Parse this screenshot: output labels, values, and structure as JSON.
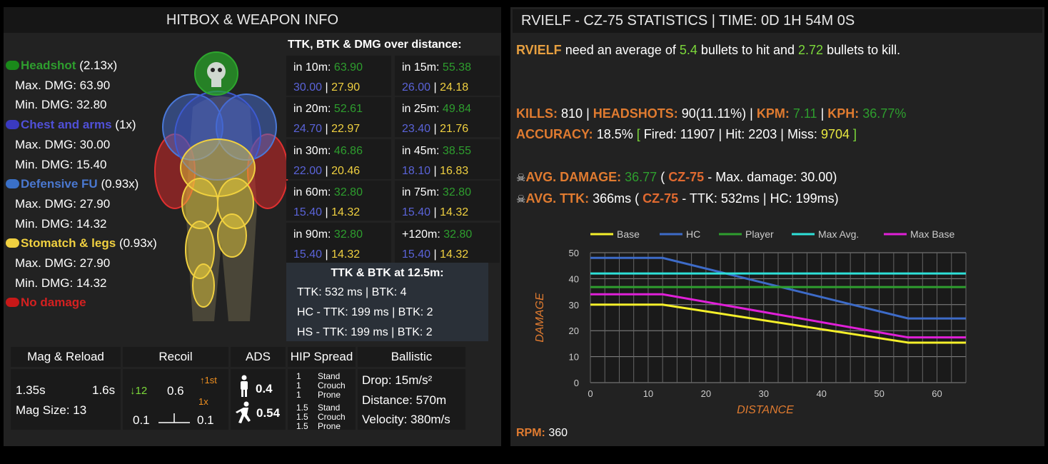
{
  "left": {
    "title": "HITBOX & WEAPON INFO",
    "zones": [
      {
        "name": "Headshot",
        "mult": "(2.13x)",
        "max": "Max. DMG: 63.90",
        "min": "Min. DMG: 32.80",
        "color": "#1a8a1a",
        "text_color": "#2ea62e"
      },
      {
        "name": "Chest and arms",
        "mult": "(1x)",
        "max": "Max. DMG: 30.00",
        "min": "Min. DMG: 15.40",
        "color": "#3a3ac0",
        "text_color": "#5050d8"
      },
      {
        "name": "Defensive FU",
        "mult": "(0.93x)",
        "max": "Max. DMG: 27.90",
        "min": "Min. DMG: 14.32",
        "color": "#3a70c8",
        "text_color": "#4a78d0"
      },
      {
        "name": "Stomatch & legs",
        "mult": "(0.93x)",
        "max": "Max. DMG: 27.90",
        "min": "Min. DMG: 14.32",
        "color": "#f0d040",
        "text_color": "#f0d040"
      }
    ],
    "no_damage": "No damage",
    "ttk_title": "TTK, BTK & DMG over distance:",
    "distances": [
      {
        "label": "in 10m:",
        "dmg": "63.90",
        "a": "30.00",
        "b": "27.90"
      },
      {
        "label": "in 15m:",
        "dmg": "55.38",
        "a": "26.00",
        "b": "24.18"
      },
      {
        "label": "in 20m:",
        "dmg": "52.61",
        "a": "24.70",
        "b": "22.97"
      },
      {
        "label": "in 25m:",
        "dmg": "49.84",
        "a": "23.40",
        "b": "21.76"
      },
      {
        "label": "in 30m:",
        "dmg": "46.86",
        "a": "22.00",
        "b": "20.46"
      },
      {
        "label": "in 45m:",
        "dmg": "38.55",
        "a": "18.10",
        "b": "16.83"
      },
      {
        "label": "in 60m:",
        "dmg": "32.80",
        "a": "15.40",
        "b": "14.32"
      },
      {
        "label": "in 75m:",
        "dmg": "32.80",
        "a": "15.40",
        "b": "14.32"
      },
      {
        "label": "in 90m:",
        "dmg": "32.80",
        "a": "15.40",
        "b": "14.32"
      },
      {
        "label": "+120m:",
        "dmg": "32.80",
        "a": "15.40",
        "b": "14.32"
      }
    ],
    "ttk125": {
      "title": "TTK & BTK at 12.5m:",
      "line1": "TTK: 532 ms | BTK: 4",
      "line2": "HC - TTK: 199 ms | BTK: 2",
      "line3": "HS - TTK: 199 ms | BTK: 2"
    },
    "stats": {
      "headers": [
        "Mag & Reload",
        "Recoil",
        "ADS",
        "HIP Spread",
        "Ballistic"
      ],
      "reload1": "1.35s",
      "reload2": "1.6s",
      "mag_size": "Mag Size: 13",
      "recoil_down": "↓12",
      "recoil_mid": "0.6",
      "recoil_first": "↑1st",
      "recoil_mult": "1x",
      "recoil_left": "0.1",
      "recoil_right": "0.1",
      "ads_stand": "0.4",
      "ads_move": "0.54",
      "hip": [
        {
          "v": "1",
          "s": "Stand"
        },
        {
          "v": "1",
          "s": "Crouch"
        },
        {
          "v": "1",
          "s": "Prone"
        },
        {
          "v": "1.5",
          "s": "Stand"
        },
        {
          "v": "1.5",
          "s": "Crouch"
        },
        {
          "v": "1.5",
          "s": "Prone"
        }
      ],
      "drop": "Drop: 15m/s²",
      "distance": "Distance: 570m",
      "velocity": "Velocity: 380m/s"
    }
  },
  "right": {
    "title": "RVIELF - CZ-75 STATISTICS | TIME: 0D 1H 54M 0S",
    "player": "RVIELF",
    "avg_pre": "need an average of",
    "bullets_hit": "5.4",
    "avg_mid": "bullets to hit and",
    "bullets_kill": "2.72",
    "avg_post": "bullets to kill.",
    "kills_label": "KILLS:",
    "kills": "810",
    "hs_label": "HEADSHOTS:",
    "hs": "90(11.11%)",
    "kpm_label": "KPM:",
    "kpm": "7.11",
    "kph_label": "KPH:",
    "kph": "36.77%",
    "acc_label": "ACCURACY:",
    "acc": "18.5%",
    "fired": "Fired: 11907",
    "hit": "Hit: 2203",
    "miss_label": "Miss:",
    "miss": "9704",
    "avg_dmg_label": "AVG. DAMAGE:",
    "avg_dmg": "36.77",
    "weapon": "CZ-75",
    "max_dmg": "- Max. damage: 30.00)",
    "avg_ttk_label": "AVG. TTK:",
    "avg_ttk": "366ms (",
    "ttk_rest": "- TTK: 532ms | HC: 199ms)",
    "rpm_label": "RPM:",
    "rpm": "360",
    "skull_icon": "skull-icon"
  },
  "chart_data": {
    "type": "line",
    "xlabel": "DISTANCE",
    "ylabel": "DAMAGE",
    "xlim": [
      0,
      65
    ],
    "ylim": [
      0,
      50
    ],
    "xticks": [
      0,
      10,
      20,
      30,
      40,
      50,
      60
    ],
    "yticks": [
      0,
      10,
      20,
      30,
      40,
      50
    ],
    "grid": true,
    "legend": "top",
    "series": [
      {
        "name": "Base",
        "color": "#f5f02a",
        "x": [
          0,
          12.5,
          55,
          65
        ],
        "y": [
          30,
          30,
          15.4,
          15.4
        ]
      },
      {
        "name": "HC",
        "color": "#3d6bc8",
        "x": [
          0,
          12.5,
          55,
          65
        ],
        "y": [
          48,
          48,
          24.7,
          24.7
        ]
      },
      {
        "name": "Player",
        "color": "#2e9e2e",
        "x": [
          0,
          65
        ],
        "y": [
          36.77,
          36.77
        ]
      },
      {
        "name": "Max Avg.",
        "color": "#2ee0d8",
        "x": [
          0,
          65
        ],
        "y": [
          42,
          42
        ]
      },
      {
        "name": "Max Base",
        "color": "#e020d8",
        "x": [
          0,
          12.5,
          55,
          65
        ],
        "y": [
          34,
          34,
          17.4,
          17.4
        ]
      }
    ]
  }
}
